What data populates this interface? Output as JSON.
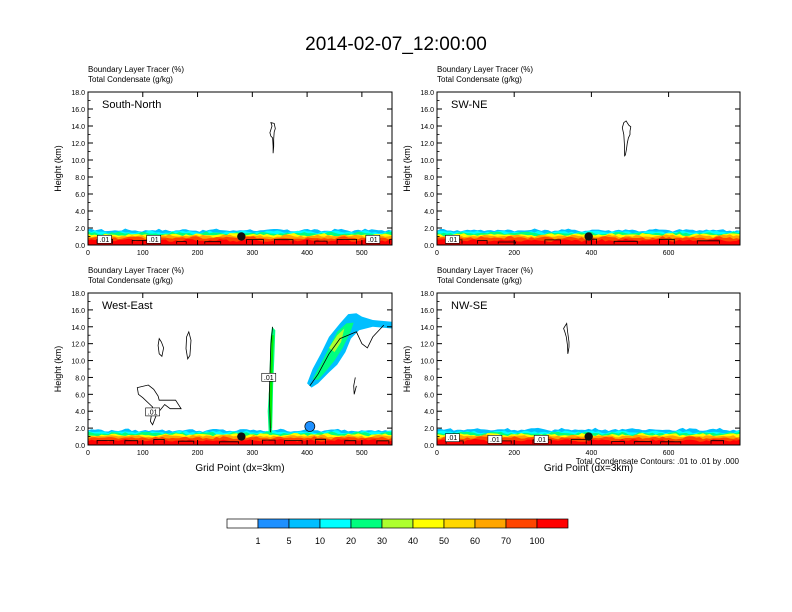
{
  "title": "2014-02-07_12:00:00",
  "panel_heading_line1": "Boundary Layer Tracer   (%)",
  "panel_heading_line2": "Total Condensate   (g/kg)",
  "footnote": "Total Condensate Contours: .01 to .01 by .000",
  "colors": {
    "scale": [
      "#ffffff",
      "#1e90ff",
      "#00bfff",
      "#00ffff",
      "#00ff7f",
      "#00ee00",
      "#adff2f",
      "#ffff00",
      "#ffd700",
      "#ffa500",
      "#ff4500",
      "#ff0000"
    ]
  },
  "colorbar_labels": [
    "1",
    "5",
    "10",
    "20",
    "30",
    "40",
    "50",
    "60",
    "70",
    "100"
  ],
  "chart_data": [
    {
      "type": "heatmap",
      "name": "South-North",
      "ylabel": "Height (km)",
      "xlabel": "",
      "xlim": [
        0,
        555
      ],
      "ylim": [
        0,
        18
      ],
      "xticks": [
        "0",
        "100",
        "200",
        "300",
        "400",
        "500"
      ],
      "yticks": [
        "0.0",
        "2.0",
        "4.0",
        "6.0",
        "8.0",
        "10.0",
        "12.0",
        "14.0",
        "16.0",
        "18.0"
      ],
      "marker_x": 280,
      "contour_labels": [
        ".01",
        ".01",
        ".01"
      ]
    },
    {
      "type": "heatmap",
      "name": "SW-NE",
      "ylabel": "Height (km)",
      "xlabel": "",
      "xlim": [
        0,
        785
      ],
      "ylim": [
        0,
        18
      ],
      "xticks": [
        "0",
        "200",
        "400",
        "600"
      ],
      "yticks": [
        "0.0",
        "2.0",
        "4.0",
        "6.0",
        "8.0",
        "10.0",
        "12.0",
        "14.0",
        "16.0",
        "18.0"
      ],
      "marker_x": 393,
      "contour_labels": [
        ".01"
      ]
    },
    {
      "type": "heatmap",
      "name": "West-East",
      "ylabel": "Height (km)",
      "xlabel": "Grid Point (dx=3km)",
      "xlim": [
        0,
        555
      ],
      "ylim": [
        0,
        18
      ],
      "xticks": [
        "0",
        "100",
        "200",
        "300",
        "400",
        "500"
      ],
      "yticks": [
        "0.0",
        "2.0",
        "4.0",
        "6.0",
        "8.0",
        "10.0",
        "12.0",
        "14.0",
        "16.0",
        "18.0"
      ],
      "marker_x": 280,
      "contour_labels": [
        ".01",
        ".01"
      ]
    },
    {
      "type": "heatmap",
      "name": "NW-SE",
      "ylabel": "Height (km)",
      "xlabel": "Grid Point (dx=3km)",
      "xlim": [
        0,
        785
      ],
      "ylim": [
        0,
        18
      ],
      "xticks": [
        "0",
        "200",
        "400",
        "600"
      ],
      "yticks": [
        "0.0",
        "2.0",
        "4.0",
        "6.0",
        "8.0",
        "10.0",
        "12.0",
        "14.0",
        "16.0",
        "18.0"
      ],
      "marker_x": 393,
      "contour_labels": [
        ".01",
        ".01",
        ".01"
      ]
    }
  ]
}
